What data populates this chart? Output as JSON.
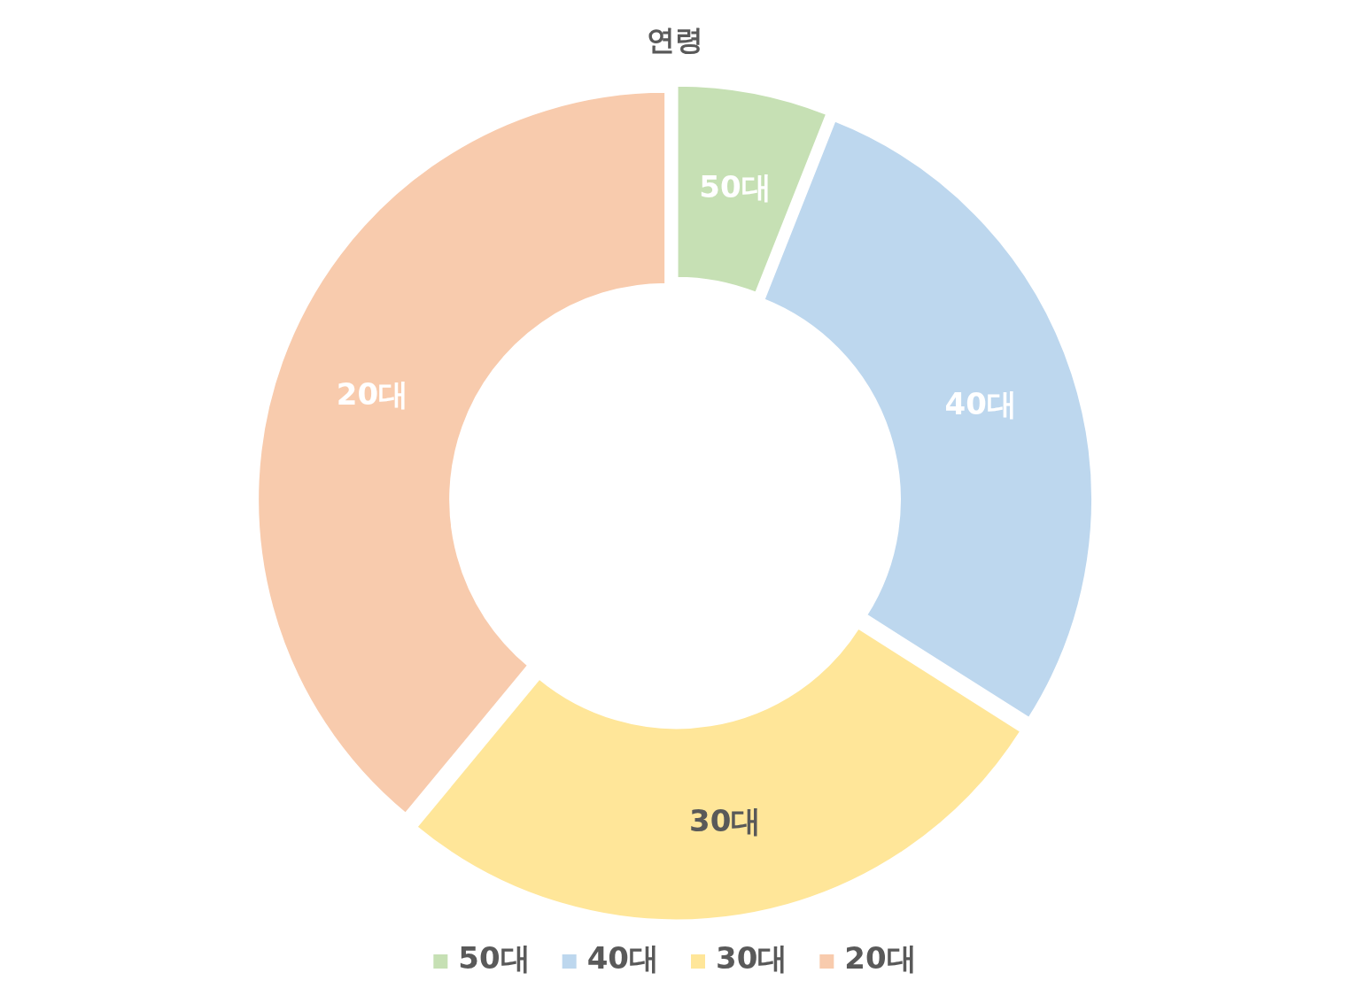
{
  "chart_data": {
    "type": "donut",
    "title": "연령",
    "categories": [
      "50대",
      "40대",
      "30대",
      "20대"
    ],
    "values": [
      6,
      28,
      27,
      39
    ],
    "colors": [
      "#c6e0b4",
      "#bdd7ee",
      "#ffe699",
      "#f8cbad"
    ],
    "legend": "bottom"
  }
}
